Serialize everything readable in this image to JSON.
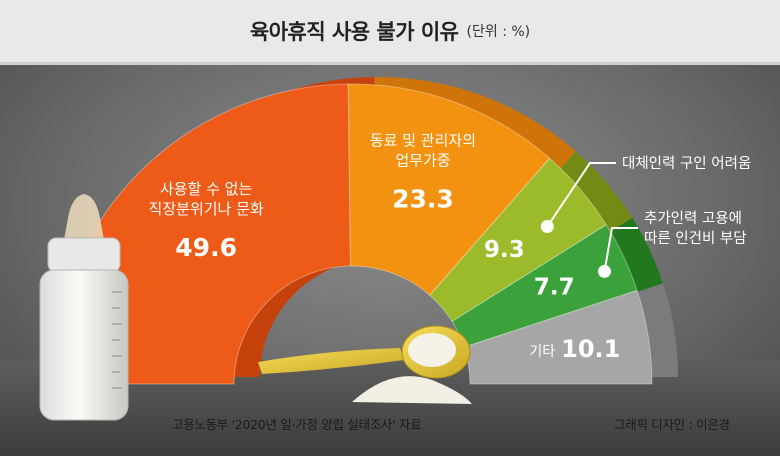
{
  "header": {
    "title": "육아휴직 사용 불가 이유",
    "unit": "(단위 : %)"
  },
  "footer": {
    "source": "고용노동부 '2020년 일·가정 양립 실태조사' 자료",
    "credit": "그래픽 디자인 : 이은경"
  },
  "colors": {
    "background": "#6f6f6f",
    "title_bar": "#e9e9e9"
  },
  "chart_data": {
    "type": "pie",
    "title": "육아휴직 사용 불가 이유",
    "unit": "(단위 : %)",
    "categories": [
      "사용할 수 없는 직장분위기나 문화",
      "동료 및 관리자의 업무가중",
      "대체인력 구인 어려움",
      "추가인력 고용에 따른 인건비 부담",
      "기타"
    ],
    "values": [
      49.6,
      23.3,
      9.3,
      7.7,
      10.1
    ],
    "value_labels": [
      "49.6",
      "23.3",
      "9.3",
      "7.7",
      "10.1"
    ],
    "category_lines": [
      [
        "사용할 수 없는",
        "직장분위기나 문화"
      ],
      [
        "동료 및 관리자의",
        "업무가중"
      ],
      [
        "대체인력 구인 어려움"
      ],
      [
        "추가인력 고용에",
        "따른 인건비 부담"
      ],
      [
        "기타"
      ]
    ],
    "colors": [
      "#ee5a17",
      "#f39210",
      "#9bbb2a",
      "#3aa13b",
      "#a6a6a6"
    ],
    "side_colors": [
      "#c6420c",
      "#cf7408",
      "#728b15",
      "#22781f",
      "#7b7b7b"
    ],
    "subtype": "half-donut"
  }
}
